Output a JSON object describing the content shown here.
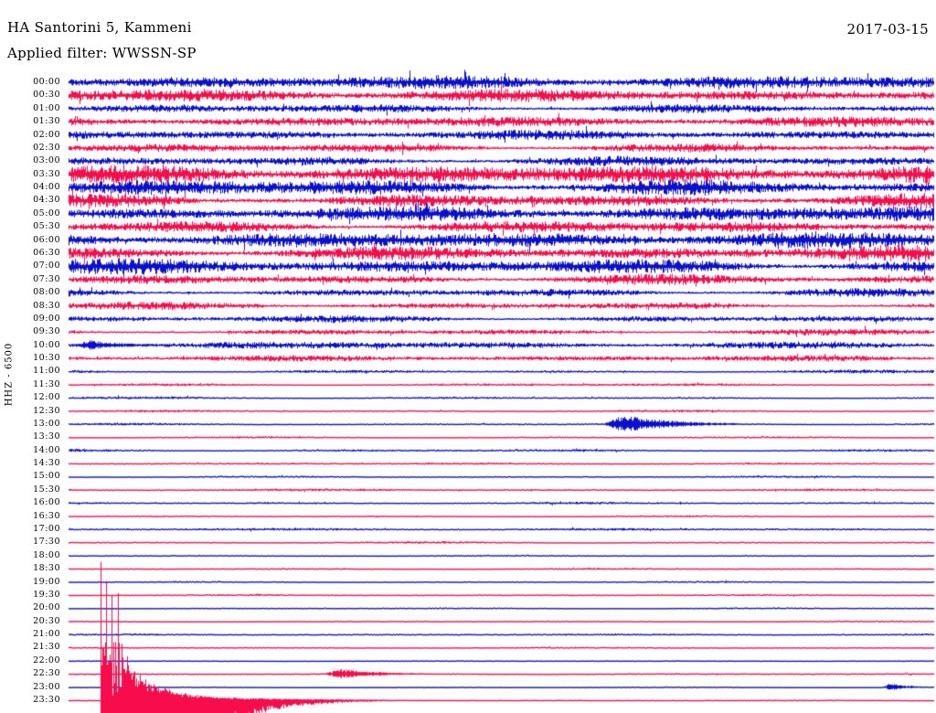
{
  "header": {
    "title": "HA Santorini 5, Kammeni",
    "filter": "Applied filter: WWSSN-SP",
    "date": "2017-03-15"
  },
  "axis": {
    "channel_label": "HHZ - 6500",
    "minutes_per_line": 30,
    "first_line": "00:00",
    "last_line": "23:30"
  },
  "colors": {
    "blue_trace": "#0b10cf",
    "red_trace": "#f70d4c",
    "text": "#000000",
    "background": "#ffffff"
  },
  "chart_data": {
    "type": "line",
    "subtype": "helicorder-seismogram",
    "station": "HA Santorini 5, Kammeni",
    "channel": "HHZ",
    "gain_scale": 6500,
    "filter": "WWSSN-SP",
    "date": "2017-03-15",
    "minutes_per_line": 30,
    "legend": "alternating line colors: on-the-hour = blue, half-hour = red",
    "notable_events": [
      {
        "approx_time": "10:00",
        "description": "small high-amplitude burst at start of 10:00 line"
      },
      {
        "approx_time": "13:19",
        "description": "moderate spindle-shaped local event on 13:00 line"
      },
      {
        "approx_time": "22:39",
        "description": "small local event on 22:30 line"
      },
      {
        "approx_time": "23:28",
        "description": "small local event near end of 23:00 line"
      },
      {
        "approx_time": "23:31",
        "description": "very large clipped local earthquake with long decaying coda, overruns neighbouring lines"
      }
    ],
    "lines": [
      {
        "time": "00:00",
        "color": "blue",
        "noise_level": 5.5,
        "events": []
      },
      {
        "time": "00:30",
        "color": "red",
        "noise_level": 5.5,
        "events": []
      },
      {
        "time": "01:00",
        "color": "blue",
        "noise_level": 5.0,
        "events": []
      },
      {
        "time": "01:30",
        "color": "red",
        "noise_level": 4.2,
        "events": []
      },
      {
        "time": "02:00",
        "color": "blue",
        "noise_level": 3.8,
        "events": []
      },
      {
        "time": "02:30",
        "color": "red",
        "noise_level": 4.5,
        "events": []
      },
      {
        "time": "03:00",
        "color": "blue",
        "noise_level": 5.0,
        "events": []
      },
      {
        "time": "03:30",
        "color": "red",
        "noise_level": 7.5,
        "events": []
      },
      {
        "time": "04:00",
        "color": "blue",
        "noise_level": 8.5,
        "events": []
      },
      {
        "time": "04:30",
        "color": "red",
        "noise_level": 8.0,
        "events": []
      },
      {
        "time": "05:00",
        "color": "blue",
        "noise_level": 6.5,
        "events": []
      },
      {
        "time": "05:30",
        "color": "red",
        "noise_level": 6.0,
        "events": []
      },
      {
        "time": "06:00",
        "color": "blue",
        "noise_level": 6.5,
        "events": []
      },
      {
        "time": "06:30",
        "color": "red",
        "noise_level": 6.5,
        "events": []
      },
      {
        "time": "07:00",
        "color": "blue",
        "noise_level": 6.5,
        "events": []
      },
      {
        "time": "07:30",
        "color": "red",
        "noise_level": 5.5,
        "events": []
      },
      {
        "time": "08:00",
        "color": "blue",
        "noise_level": 4.5,
        "events": []
      },
      {
        "time": "08:30",
        "color": "red",
        "noise_level": 3.8,
        "events": []
      },
      {
        "time": "09:00",
        "color": "blue",
        "noise_level": 3.5,
        "events": []
      },
      {
        "time": "09:30",
        "color": "red",
        "noise_level": 3.2,
        "events": []
      },
      {
        "time": "10:00",
        "color": "blue",
        "noise_level": 3.0,
        "events": [
          {
            "at_min": 0.1,
            "amp": 5.5,
            "dur_min": 2.5
          }
        ]
      },
      {
        "time": "10:30",
        "color": "red",
        "noise_level": 2.4,
        "events": []
      },
      {
        "time": "11:00",
        "color": "blue",
        "noise_level": 2.0,
        "events": []
      },
      {
        "time": "11:30",
        "color": "red",
        "noise_level": 1.5,
        "events": []
      },
      {
        "time": "12:00",
        "color": "blue",
        "noise_level": 1.3,
        "events": []
      },
      {
        "time": "12:30",
        "color": "red",
        "noise_level": 1.5,
        "events": []
      },
      {
        "time": "13:00",
        "color": "blue",
        "noise_level": 1.4,
        "events": [
          {
            "at_min": 18.5,
            "amp": 10,
            "dur_min": 3
          }
        ]
      },
      {
        "time": "13:30",
        "color": "red",
        "noise_level": 1.3,
        "events": []
      },
      {
        "time": "14:00",
        "color": "blue",
        "noise_level": 1.4,
        "events": []
      },
      {
        "time": "14:30",
        "color": "red",
        "noise_level": 1.1,
        "events": []
      },
      {
        "time": "15:00",
        "color": "blue",
        "noise_level": 1.1,
        "events": []
      },
      {
        "time": "15:30",
        "color": "red",
        "noise_level": 1.1,
        "events": []
      },
      {
        "time": "16:00",
        "color": "blue",
        "noise_level": 1.0,
        "events": []
      },
      {
        "time": "16:30",
        "color": "red",
        "noise_level": 1.1,
        "events": []
      },
      {
        "time": "17:00",
        "color": "blue",
        "noise_level": 1.1,
        "events": []
      },
      {
        "time": "17:30",
        "color": "red",
        "noise_level": 1.2,
        "events": []
      },
      {
        "time": "18:00",
        "color": "blue",
        "noise_level": 1.0,
        "events": []
      },
      {
        "time": "18:30",
        "color": "red",
        "noise_level": 1.1,
        "events": []
      },
      {
        "time": "19:00",
        "color": "blue",
        "noise_level": 0.9,
        "events": []
      },
      {
        "time": "19:30",
        "color": "red",
        "noise_level": 0.8,
        "events": []
      },
      {
        "time": "20:00",
        "color": "blue",
        "noise_level": 0.9,
        "events": []
      },
      {
        "time": "20:30",
        "color": "red",
        "noise_level": 0.7,
        "events": []
      },
      {
        "time": "21:00",
        "color": "blue",
        "noise_level": 0.8,
        "events": []
      },
      {
        "time": "21:30",
        "color": "red",
        "noise_level": 0.7,
        "events": []
      },
      {
        "time": "22:00",
        "color": "blue",
        "noise_level": 0.5,
        "events": []
      },
      {
        "time": "22:30",
        "color": "red",
        "noise_level": 0.8,
        "events": [
          {
            "at_min": 8.8,
            "amp": 5.5,
            "dur_min": 2.5
          }
        ]
      },
      {
        "time": "23:00",
        "color": "blue",
        "noise_level": 0.6,
        "events": [
          {
            "at_min": 28.2,
            "amp": 4,
            "dur_min": 1.2
          }
        ]
      },
      {
        "time": "23:30",
        "color": "red",
        "noise_level": 0.7,
        "events": [
          {
            "at_min": 1.1,
            "amp": 160,
            "dur_min": 6,
            "major": true
          }
        ]
      }
    ]
  }
}
